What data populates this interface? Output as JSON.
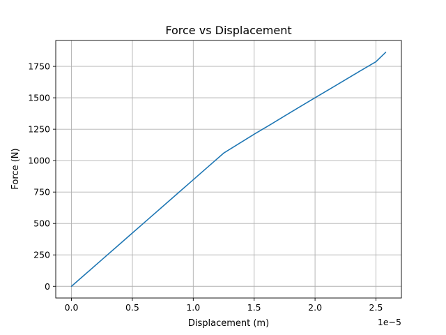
{
  "chart_data": {
    "type": "line",
    "title": "Force vs Displacement",
    "xlabel": "Displacement (m)",
    "ylabel": "Force (N)",
    "x_offset_label": "1e−5",
    "xlim": [
      -1.29e-06,
      2.709e-05
    ],
    "ylim": [
      -93,
      1956
    ],
    "x_ticks": [
      0,
      5e-06,
      1e-05,
      1.5e-05,
      2e-05,
      2.5e-05
    ],
    "x_tick_labels": [
      "0.0",
      "0.5",
      "1.0",
      "1.5",
      "2.0",
      "2.5"
    ],
    "y_ticks": [
      0,
      250,
      500,
      750,
      1000,
      1250,
      1500,
      1750
    ],
    "y_tick_labels": [
      "0",
      "250",
      "500",
      "750",
      "1000",
      "1250",
      "1500",
      "1750"
    ],
    "grid": true,
    "series": [
      {
        "color": "#1f77b4",
        "x": [
          0,
          1.25e-06,
          2.5e-06,
          3.75e-06,
          5e-06,
          6.25e-06,
          7.5e-06,
          8.75e-06,
          1e-05,
          1.125e-05,
          1.25e-05,
          1.375e-05,
          1.5e-05,
          1.625e-05,
          1.75e-05,
          1.875e-05,
          2e-05,
          2.125e-05,
          2.25e-05,
          2.375e-05,
          2.5e-05,
          2.58e-05
        ],
        "y": [
          0,
          106,
          212,
          318,
          424,
          530,
          636,
          742,
          848,
          954,
          1060,
          1135,
          1210,
          1282,
          1355,
          1428,
          1500,
          1572,
          1644,
          1716,
          1787,
          1862
        ]
      }
    ]
  }
}
